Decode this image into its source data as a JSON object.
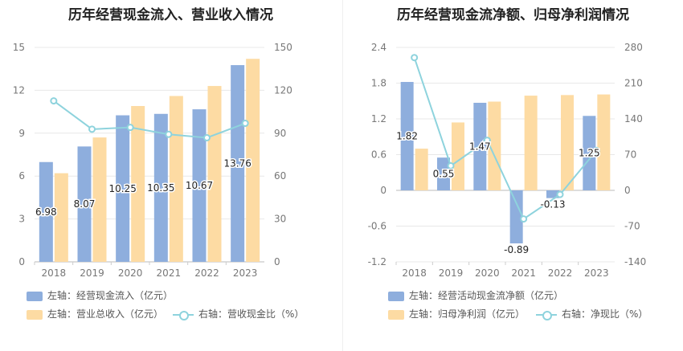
{
  "colors": {
    "bar_primary": "#8eaedd",
    "bar_secondary": "#fddba3",
    "line": "#8ed3dd",
    "grid": "#e8e8e8",
    "axis_text": "#777"
  },
  "chart_data": [
    {
      "type": "bar",
      "title": "历年经营现金流入、营业收入情况",
      "categories": [
        "2018",
        "2019",
        "2020",
        "2021",
        "2022",
        "2023"
      ],
      "left_axis": {
        "ylim": [
          0,
          15
        ],
        "ticks": [
          "0",
          "3",
          "6",
          "9",
          "12",
          "15"
        ]
      },
      "right_axis": {
        "ylim": [
          0,
          150
        ],
        "ticks": [
          "0",
          "30",
          "60",
          "90",
          "120",
          "150"
        ]
      },
      "series": [
        {
          "name": "左轴：经营现金流入（亿元）",
          "kind": "bar",
          "axis": "left",
          "values": [
            6.98,
            8.07,
            10.25,
            10.35,
            10.67,
            13.76
          ],
          "labels": [
            "6.98",
            "8.07",
            "10.25",
            "10.35",
            "10.67",
            "13.76"
          ]
        },
        {
          "name": "左轴：营业总收入（亿元）",
          "kind": "bar",
          "axis": "left",
          "values": [
            6.2,
            8.7,
            10.9,
            11.6,
            12.3,
            14.2
          ]
        },
        {
          "name": "右轴：营收现金比（%）",
          "kind": "line",
          "axis": "right",
          "values": [
            112.6,
            92.8,
            94.0,
            89.2,
            86.8,
            96.9
          ]
        }
      ],
      "legend_position": "bottom-left"
    },
    {
      "type": "bar",
      "title": "历年经营现金流净额、归母净利润情况",
      "categories": [
        "2018",
        "2019",
        "2020",
        "2021",
        "2022",
        "2023"
      ],
      "left_axis": {
        "ylim": [
          -1.2,
          2.4
        ],
        "ticks": [
          "-1.2",
          "-0.6",
          "0",
          "0.6",
          "1.2",
          "1.8",
          "2.4"
        ]
      },
      "right_axis": {
        "ylim": [
          -140,
          280
        ],
        "ticks": [
          "-140",
          "-70",
          "0",
          "70",
          "140",
          "210",
          "280"
        ]
      },
      "series": [
        {
          "name": "左轴：经营活动现金流净额（亿元）",
          "kind": "bar",
          "axis": "left",
          "values": [
            1.82,
            0.55,
            1.47,
            -0.89,
            -0.13,
            1.25
          ],
          "labels": [
            "1.82",
            "0.55",
            "1.47",
            "-0.89",
            "-0.13",
            "1.25"
          ]
        },
        {
          "name": "左轴：归母净利润（亿元）",
          "kind": "bar",
          "axis": "left",
          "values": [
            0.7,
            1.14,
            1.49,
            1.59,
            1.6,
            1.61
          ]
        },
        {
          "name": "右轴：净现比（%）",
          "kind": "line",
          "axis": "right",
          "values": [
            260,
            48,
            98,
            -56,
            -8,
            78
          ]
        }
      ],
      "legend_position": "bottom-left"
    }
  ]
}
